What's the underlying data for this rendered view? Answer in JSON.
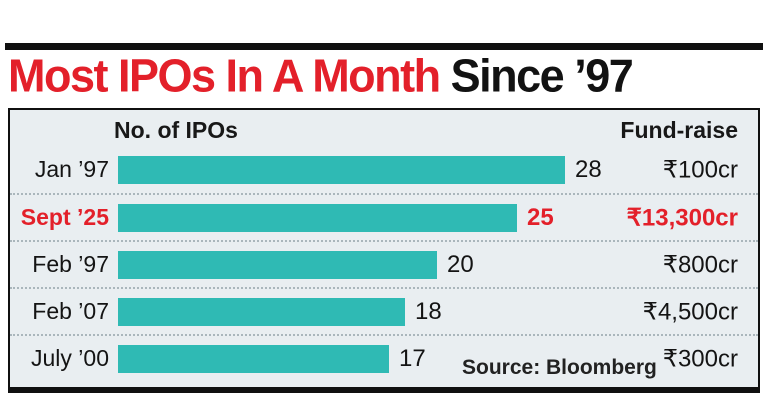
{
  "title": {
    "red_part": "Most IPOs In A Month",
    "black_part": " Since ’97"
  },
  "columns": {
    "ipos": "No. of IPOs",
    "fund": "Fund-raise"
  },
  "rows": [
    {
      "label": "Jan ’97",
      "ipos": 28,
      "fund": "₹100cr",
      "highlight": false
    },
    {
      "label": "Sept ’25",
      "ipos": 25,
      "fund": "₹13,300cr",
      "highlight": true
    },
    {
      "label": "Feb ’97",
      "ipos": 20,
      "fund": "₹800cr",
      "highlight": false
    },
    {
      "label": "Feb ’07",
      "ipos": 18,
      "fund": "₹4,500cr",
      "highlight": false
    },
    {
      "label": "July ’00",
      "ipos": 17,
      "fund": "₹300cr",
      "highlight": false
    }
  ],
  "source": "Source: Bloomberg",
  "colors": {
    "accent_red": "#e3202a",
    "bar_teal": "#2fbab4",
    "panel_bg": "#e9eef1",
    "ink": "#111111"
  },
  "chart_data": {
    "type": "bar",
    "orientation": "horizontal",
    "title": "Most IPOs In A Month Since ’97",
    "categories": [
      "Jan ’97",
      "Sept ’25",
      "Feb ’97",
      "Feb ’07",
      "July ’00"
    ],
    "series": [
      {
        "name": "No. of IPOs",
        "values": [
          28,
          25,
          20,
          18,
          17
        ]
      },
      {
        "name": "Fund-raise",
        "values": [
          "₹100cr",
          "₹13,300cr",
          "₹800cr",
          "₹4,500cr",
          "₹300cr"
        ]
      }
    ],
    "highlight_index": 1,
    "xlim": [
      0,
      28
    ],
    "grid": false,
    "legend": false,
    "source": "Source: Bloomberg"
  }
}
